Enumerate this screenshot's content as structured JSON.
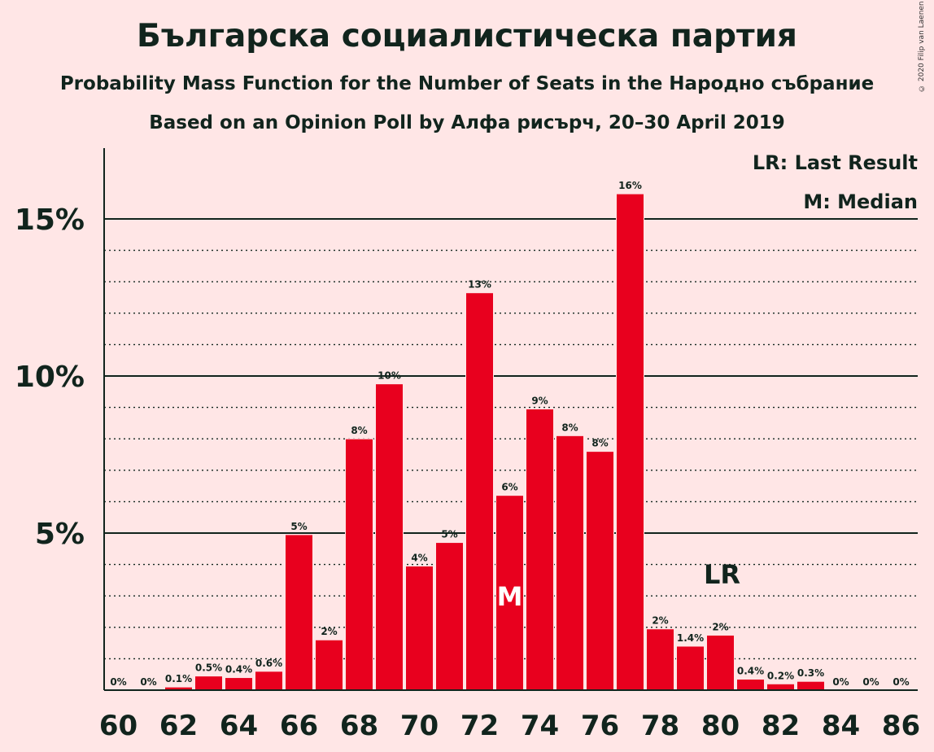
{
  "header": {
    "title": "Българска социалистическа партия",
    "subtitle": "Probability Mass Function for the Number of Seats in the Народно събрание",
    "subtitle2": "Based on an Opinion Poll by Алфа рисърч, 20–30 April 2019",
    "copyright": "© 2020 Filip van Laenen"
  },
  "legend": {
    "last_result": "LR: Last Result",
    "median": "M: Median"
  },
  "colors": {
    "bar": "#e8001e",
    "background": "#ffe6e6",
    "text": "#11241d"
  },
  "chart_data": {
    "type": "bar",
    "x": [
      60,
      61,
      62,
      63,
      64,
      65,
      66,
      67,
      68,
      69,
      70,
      71,
      72,
      73,
      74,
      75,
      76,
      77,
      78,
      79,
      80,
      81,
      82,
      83,
      84,
      85,
      86
    ],
    "values": [
      0,
      0,
      0.1,
      0.45,
      0.4,
      0.6,
      4.95,
      1.6,
      8.0,
      9.75,
      3.95,
      4.7,
      12.65,
      6.2,
      8.95,
      8.1,
      7.6,
      15.8,
      1.95,
      1.4,
      1.75,
      0.35,
      0.2,
      0.28,
      0,
      0,
      0
    ],
    "labels": [
      "0%",
      "0%",
      "0.1%",
      "0.5%",
      "0.4%",
      "0.6%",
      "5%",
      "2%",
      "8%",
      "10%",
      "4%",
      "5%",
      "13%",
      "6%",
      "9%",
      "8%",
      "8%",
      "16%",
      "2%",
      "1.4%",
      "2%",
      "0.4%",
      "0.2%",
      "0.3%",
      "0%",
      "0%",
      "0%"
    ],
    "x_tick_labels": [
      "60",
      "62",
      "64",
      "66",
      "68",
      "70",
      "72",
      "74",
      "76",
      "78",
      "80",
      "82",
      "84",
      "86"
    ],
    "x_tick_values": [
      60,
      62,
      64,
      66,
      68,
      70,
      72,
      74,
      76,
      78,
      80,
      82,
      84,
      86
    ],
    "y_tick_labels": [
      "5%",
      "10%",
      "15%"
    ],
    "y_tick_values": [
      5,
      10,
      15
    ],
    "ylim": [
      0,
      17.2
    ],
    "minor_gridlines": [
      1,
      2,
      3,
      4,
      6,
      7,
      8,
      9,
      11,
      12,
      13,
      14
    ],
    "median": {
      "x": 73,
      "label": "M"
    },
    "last_result": {
      "x": 80,
      "label": "LR"
    }
  }
}
